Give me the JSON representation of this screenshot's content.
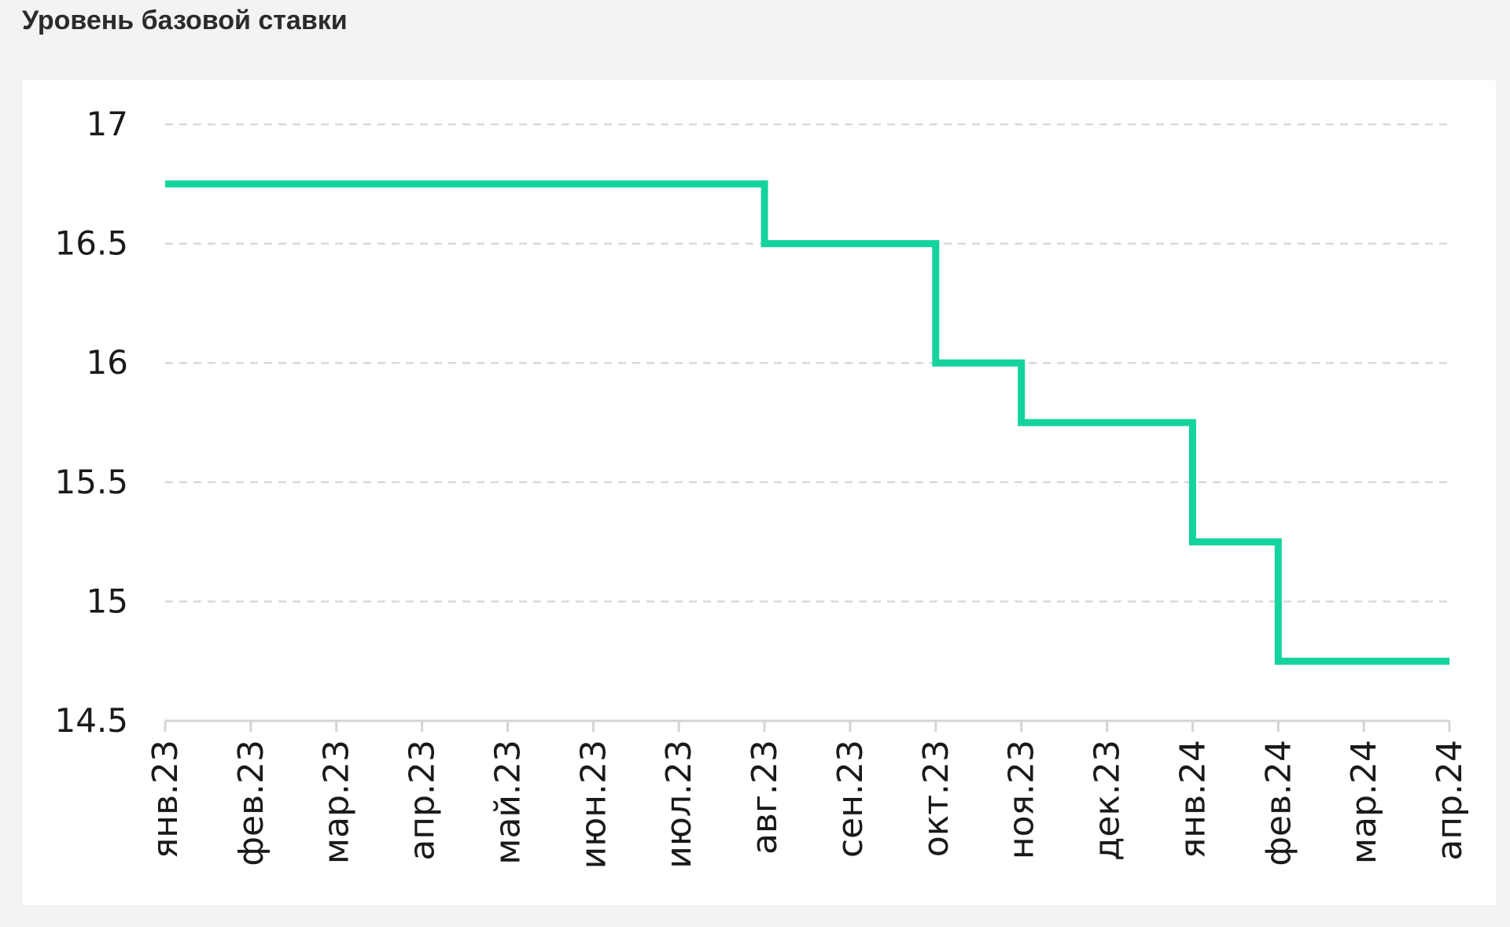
{
  "chart_data": {
    "type": "line",
    "step": true,
    "title": "Уровень базовой ставки",
    "xlabel": "",
    "ylabel": "",
    "categories": [
      "янв.23",
      "фев.23",
      "мар.23",
      "апр.23",
      "май.23",
      "июн.23",
      "июл.23",
      "авг.23",
      "сен.23",
      "окт.23",
      "ноя.23",
      "дек.23",
      "янв.24",
      "фев.24",
      "мар.24",
      "апр.24"
    ],
    "ylim": [
      14.5,
      17
    ],
    "yticks": [
      "14.5",
      "15",
      "15.5",
      "16",
      "16.5",
      "17"
    ],
    "grid": true,
    "series": [
      {
        "values": [
          16.75,
          16.75,
          16.75,
          16.75,
          16.75,
          16.75,
          16.75,
          16.5,
          16.5,
          16,
          15.75,
          15.75,
          15.25,
          14.75,
          14.75,
          14.75
        ]
      }
    ],
    "line_color": "#14d39c",
    "grid_color": "#d9d9d9",
    "axis_color": "#d4d4d4"
  }
}
